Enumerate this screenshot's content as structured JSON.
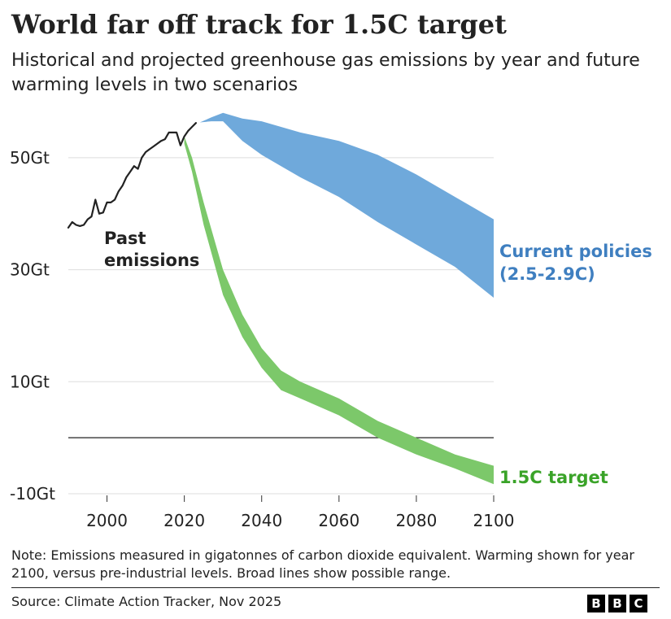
{
  "header": {
    "title": "World far off track for 1.5C target",
    "subtitle": "Historical and projected greenhouse gas emissions by year and future warming levels in two scenarios"
  },
  "footer": {
    "note": "Note: Emissions measured in gigatonnes of carbon dioxide equivalent. Warming shown for year 2100, versus pre-industrial levels. Broad lines show possible range.",
    "source": "Source: Climate Action Tracker, Nov 2025",
    "logo_letters": [
      "B",
      "B",
      "C"
    ]
  },
  "colors": {
    "current_policies": "#6fa9db",
    "current_policies_label": "#3f7fc0",
    "target": "#7cc86a",
    "target_label": "#3aa328",
    "past": "#222222",
    "grid": "#dddddd",
    "zero_line": "#222222",
    "axis_text": "#222222"
  },
  "chart_data": {
    "type": "area",
    "title": "World far off track for 1.5C target",
    "xlabel": "",
    "ylabel": "",
    "xlim": [
      1990,
      2100
    ],
    "ylim": [
      -10,
      60
    ],
    "xticks": [
      2000,
      2020,
      2040,
      2060,
      2080,
      2100
    ],
    "xtick_labels": [
      "2000",
      "2020",
      "2040",
      "2060",
      "2080",
      "2100"
    ],
    "yticks": [
      50,
      30,
      10,
      -10
    ],
    "ytick_labels": [
      "50Gt",
      "30Gt",
      "10Gt",
      "-10Gt"
    ],
    "grid": true,
    "zero_line": 0,
    "series": [
      {
        "name": "Past emissions",
        "label": [
          "Past",
          "emissions"
        ],
        "kind": "line",
        "x": [
          1990,
          1991,
          1992,
          1993,
          1994,
          1995,
          1996,
          1997,
          1998,
          1999,
          2000,
          2001,
          2002,
          2003,
          2004,
          2005,
          2006,
          2007,
          2008,
          2009,
          2010,
          2011,
          2012,
          2013,
          2014,
          2015,
          2016,
          2017,
          2018,
          2019,
          2020,
          2021,
          2022,
          2023
        ],
        "y": [
          37.5,
          38.5,
          38,
          37.8,
          38,
          39,
          39.5,
          42.5,
          40,
          40.2,
          42,
          42,
          42.5,
          44,
          45,
          46.5,
          47.5,
          48.5,
          48,
          50,
          51,
          51.5,
          52,
          52.5,
          53,
          53.3,
          54.5,
          54.5,
          54.5,
          52.2,
          53.8,
          54.8,
          55.5,
          56.2
        ]
      },
      {
        "name": "Current policies (2.5-2.9C)",
        "label": [
          "Current policies",
          "(2.5-2.9C)"
        ],
        "kind": "range",
        "x": [
          2024,
          2027,
          2030,
          2035,
          2040,
          2045,
          2050,
          2060,
          2070,
          2080,
          2090,
          2100
        ],
        "upper": [
          56.3,
          57.2,
          58,
          57,
          56.5,
          55.5,
          54.5,
          53,
          50.5,
          47,
          43,
          39
        ],
        "lower": [
          56.3,
          56.5,
          56.5,
          53,
          50.5,
          48.5,
          46.5,
          43,
          38.5,
          34.5,
          30.5,
          25
        ]
      },
      {
        "name": "1.5C target",
        "label": [
          "1.5C target"
        ],
        "kind": "range",
        "x": [
          2020,
          2022,
          2025,
          2030,
          2035,
          2040,
          2045,
          2050,
          2060,
          2070,
          2080,
          2090,
          2100
        ],
        "upper": [
          53.8,
          50,
          42,
          30,
          22,
          16,
          12,
          10,
          7,
          3,
          0,
          -3,
          -5
        ],
        "lower": [
          52.5,
          47.5,
          38,
          25.5,
          18,
          12.5,
          8.5,
          7,
          4,
          0,
          -3,
          -5.5,
          -8.3
        ]
      }
    ]
  }
}
